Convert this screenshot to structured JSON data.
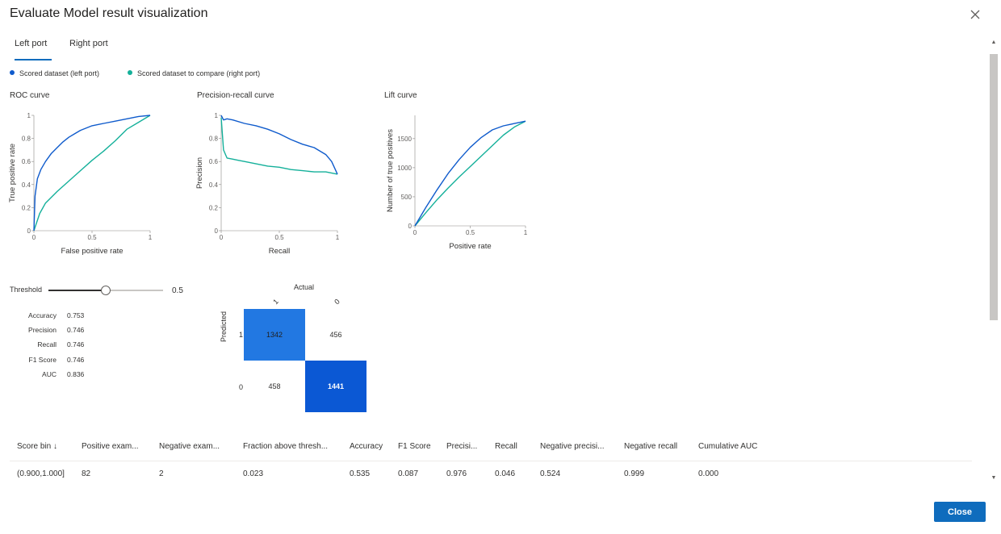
{
  "dialog": {
    "title": "Evaluate Model result visualization",
    "close_icon": "close-icon"
  },
  "tabs": [
    {
      "label": "Left port",
      "active": true
    },
    {
      "label": "Right port",
      "active": false
    }
  ],
  "legend": [
    {
      "label": "Scored dataset (left port)",
      "color": "#0f5bcc"
    },
    {
      "label": "Scored dataset to compare (right port)",
      "color": "#14b09a"
    }
  ],
  "colors": {
    "left": "#0f5bcc",
    "right": "#14b09a",
    "accent": "#0f6cbd",
    "cm_light": "#2278e2",
    "cm_dark": "#0b58d4"
  },
  "chart_data": [
    {
      "type": "line",
      "title": "ROC curve",
      "xlabel": "False positive rate",
      "ylabel": "True positive rate",
      "xlim": [
        0,
        1
      ],
      "ylim": [
        0,
        1
      ],
      "xticks": [
        "0",
        "0.5",
        "1"
      ],
      "yticks": [
        "0",
        "0.2",
        "0.4",
        "0.6",
        "0.8",
        "1"
      ],
      "series": [
        {
          "name": "Scored dataset (left port)",
          "x": [
            0,
            0.01,
            0.03,
            0.06,
            0.1,
            0.15,
            0.2,
            0.25,
            0.3,
            0.35,
            0.4,
            0.5,
            0.6,
            0.7,
            0.8,
            0.9,
            1
          ],
          "y": [
            0,
            0.3,
            0.45,
            0.53,
            0.6,
            0.67,
            0.72,
            0.77,
            0.81,
            0.84,
            0.87,
            0.91,
            0.93,
            0.95,
            0.97,
            0.99,
            1
          ]
        },
        {
          "name": "Scored dataset to compare (right port)",
          "x": [
            0,
            0.05,
            0.1,
            0.2,
            0.3,
            0.4,
            0.5,
            0.6,
            0.7,
            0.8,
            0.9,
            1
          ],
          "y": [
            0,
            0.15,
            0.24,
            0.34,
            0.43,
            0.52,
            0.61,
            0.69,
            0.78,
            0.88,
            0.94,
            1
          ]
        }
      ]
    },
    {
      "type": "line",
      "title": "Precision-recall curve",
      "xlabel": "Recall",
      "ylabel": "Precision",
      "xlim": [
        0,
        1
      ],
      "ylim": [
        0,
        1
      ],
      "xticks": [
        "0",
        "0.5",
        "1"
      ],
      "yticks": [
        "0",
        "0.2",
        "0.4",
        "0.6",
        "0.8",
        "1"
      ],
      "series": [
        {
          "name": "Scored dataset (left port)",
          "x": [
            0,
            0.02,
            0.05,
            0.1,
            0.2,
            0.3,
            0.4,
            0.5,
            0.6,
            0.7,
            0.8,
            0.9,
            0.95,
            1
          ],
          "y": [
            1,
            0.96,
            0.97,
            0.96,
            0.93,
            0.91,
            0.88,
            0.84,
            0.79,
            0.75,
            0.72,
            0.66,
            0.6,
            0.49
          ]
        },
        {
          "name": "Scored dataset to compare (right port)",
          "x": [
            0,
            0.02,
            0.05,
            0.1,
            0.15,
            0.2,
            0.3,
            0.4,
            0.5,
            0.6,
            0.7,
            0.8,
            0.9,
            1
          ],
          "y": [
            0.98,
            0.7,
            0.63,
            0.62,
            0.61,
            0.6,
            0.58,
            0.56,
            0.55,
            0.53,
            0.52,
            0.51,
            0.51,
            0.49
          ]
        }
      ]
    },
    {
      "type": "line",
      "title": "Lift curve",
      "xlabel": "Positive rate",
      "ylabel": "Number of true positives",
      "xlim": [
        0,
        1
      ],
      "ylim": [
        0,
        1900
      ],
      "xticks": [
        "0",
        "0.5",
        "1"
      ],
      "yticks": [
        "0",
        "500",
        "1000",
        "1500"
      ],
      "series": [
        {
          "name": "Scored dataset (left port)",
          "x": [
            0,
            0.1,
            0.2,
            0.3,
            0.4,
            0.5,
            0.6,
            0.7,
            0.8,
            0.9,
            1
          ],
          "y": [
            0,
            320,
            620,
            900,
            1140,
            1350,
            1520,
            1650,
            1720,
            1760,
            1800
          ]
        },
        {
          "name": "Scored dataset to compare (right port)",
          "x": [
            0,
            0.1,
            0.2,
            0.3,
            0.4,
            0.5,
            0.6,
            0.7,
            0.8,
            0.9,
            1
          ],
          "y": [
            0,
            230,
            450,
            650,
            840,
            1020,
            1200,
            1380,
            1560,
            1700,
            1800
          ]
        }
      ]
    }
  ],
  "threshold": {
    "label": "Threshold",
    "value_text": "0.5",
    "value": 0.5
  },
  "metrics": [
    {
      "name": "Accuracy",
      "value": "0.753"
    },
    {
      "name": "Precision",
      "value": "0.746"
    },
    {
      "name": "Recall",
      "value": "0.746"
    },
    {
      "name": "F1 Score",
      "value": "0.746"
    },
    {
      "name": "AUC",
      "value": "0.836"
    }
  ],
  "confusion_matrix": {
    "actual_label": "Actual",
    "predicted_label": "Predicted",
    "col_labels": [
      "1",
      "0"
    ],
    "row_labels": [
      "1",
      "0"
    ],
    "cells": [
      [
        "1342",
        "456"
      ],
      [
        "458",
        "1441"
      ]
    ]
  },
  "table": {
    "headers": [
      "Score bin ↓",
      "Positive exam...",
      "Negative exam...",
      "Fraction above thresh...",
      "Accuracy",
      "F1 Score",
      "Precisi...",
      "Recall",
      "Negative precisi...",
      "Negative recall",
      "Cumulative AUC"
    ],
    "rows": [
      [
        "(0.900,1.000]",
        "82",
        "2",
        "0.023",
        "0.535",
        "0.087",
        "0.976",
        "0.046",
        "0.524",
        "0.999",
        "0.000"
      ]
    ]
  },
  "footer": {
    "close_label": "Close"
  }
}
